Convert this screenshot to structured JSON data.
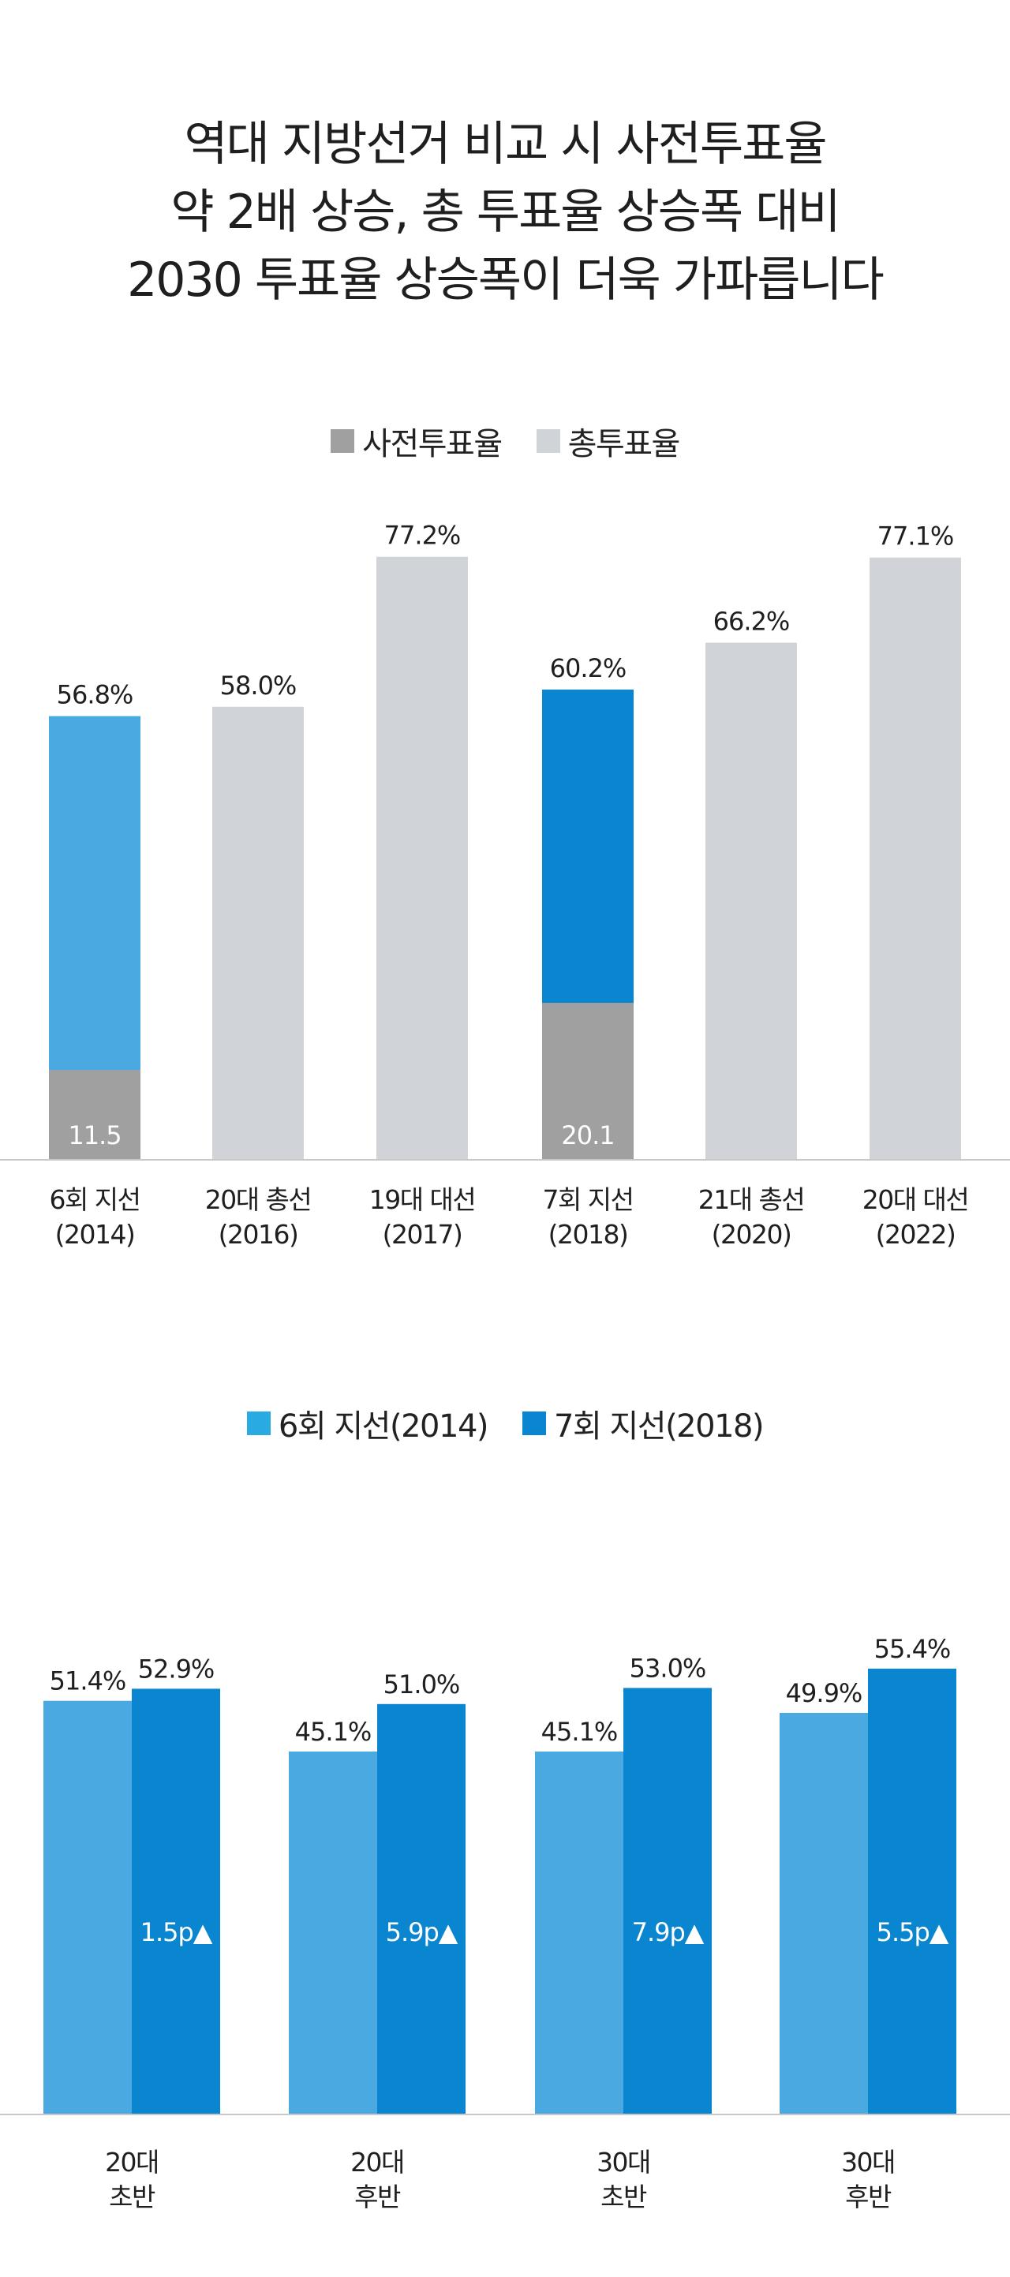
{
  "headline": {
    "line1": "역대 지방선거 비교 시 사전투표율",
    "line2": "약 2배 상승, 총 투표율 상승폭 대비",
    "line3": "2030 투표율 상승폭이 더욱 가파릅니다"
  },
  "colors": {
    "early": "#a0a0a0",
    "total": "#d0d3d7",
    "local2014": "#4aa9e0",
    "local2018": "#0a86d0",
    "legend2014": "#29abe2",
    "legend2018": "#0a86d0",
    "axis": "#c8c8c8"
  },
  "chart_data": [
    {
      "type": "bar",
      "legend": [
        "사전투표율",
        "총투표율"
      ],
      "legend_position": "top-center",
      "categories": [
        [
          "6회 지선",
          "(2014)"
        ],
        [
          "20대 총선",
          "(2016)"
        ],
        [
          "19대 대선",
          "(2017)"
        ],
        [
          "7회 지선",
          "(2018)"
        ],
        [
          "21대 총선",
          "(2020)"
        ],
        [
          "20대 대선",
          "(2022)"
        ]
      ],
      "series": [
        {
          "name": "총투표율",
          "values": [
            56.8,
            58.0,
            77.2,
            60.2,
            66.2,
            77.1
          ],
          "labels": [
            "56.8%",
            "58.0%",
            "77.2%",
            "60.2%",
            "66.2%",
            "77.1%"
          ]
        },
        {
          "name": "사전투표율",
          "values": [
            11.5,
            null,
            null,
            20.1,
            null,
            null
          ],
          "labels": [
            "11.5",
            "",
            "",
            "20.1",
            "",
            ""
          ]
        }
      ],
      "ylim": [
        0,
        100
      ],
      "grid": false
    },
    {
      "type": "bar",
      "legend": [
        "6회 지선(2014)",
        "7회 지선(2018)"
      ],
      "legend_position": "top-center",
      "categories": [
        [
          "20대",
          "초반"
        ],
        [
          "20대",
          "후반"
        ],
        [
          "30대",
          "초반"
        ],
        [
          "30대",
          "후반"
        ]
      ],
      "series": [
        {
          "name": "6회 지선(2014)",
          "values": [
            51.4,
            45.1,
            45.1,
            49.9
          ],
          "labels": [
            "51.4%",
            "45.1%",
            "45.1%",
            "49.9%"
          ]
        },
        {
          "name": "7회 지선(2018)",
          "values": [
            52.9,
            51.0,
            53.0,
            55.4
          ],
          "labels": [
            "52.9%",
            "51.0%",
            "53.0%",
            "55.4%"
          ]
        }
      ],
      "annotations": [
        "1.5p▲",
        "5.9p▲",
        "7.9p▲",
        "5.5p▲"
      ],
      "ylim": [
        0,
        100
      ],
      "grid": false
    }
  ]
}
